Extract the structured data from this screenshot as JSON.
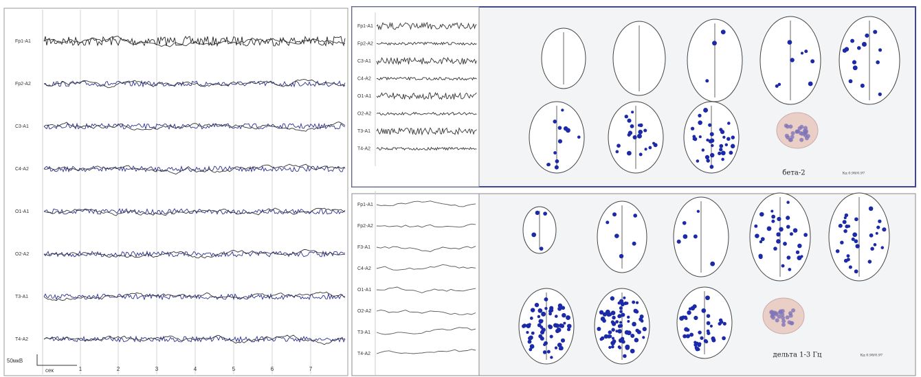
{
  "left_panel": {
    "channels": [
      "Fp1-A1",
      "Fp2-A2",
      "C3-A1",
      "C4-A2",
      "O1-A1",
      "O2-A2",
      "T3-A1",
      "T4-A2"
    ],
    "scale_label": "50мкВ",
    "time_unit": "сек",
    "time_ticks": [
      "1",
      "2",
      "3",
      "4",
      "5",
      "6",
      "7"
    ]
  },
  "top_panel": {
    "channels": [
      "Fp1-A1",
      "Fp2-A2",
      "C3-A1",
      "C4-A2",
      "O1-A1",
      "O2-A2",
      "T3-A1",
      "T4-A2"
    ],
    "band_label": "бета-2",
    "coeff_label": "Кд 0.98/0.97"
  },
  "bottom_panel": {
    "channels": [
      "Fp1-A1",
      "Fp2-A2",
      "F3-A1",
      "C4-A2",
      "O1-A1",
      "O2-A2",
      "T3-A1",
      "T4-A2"
    ],
    "band_label": "дельта 1-3 Гц",
    "coeff_label": "Кд 0.98/0.97"
  }
}
